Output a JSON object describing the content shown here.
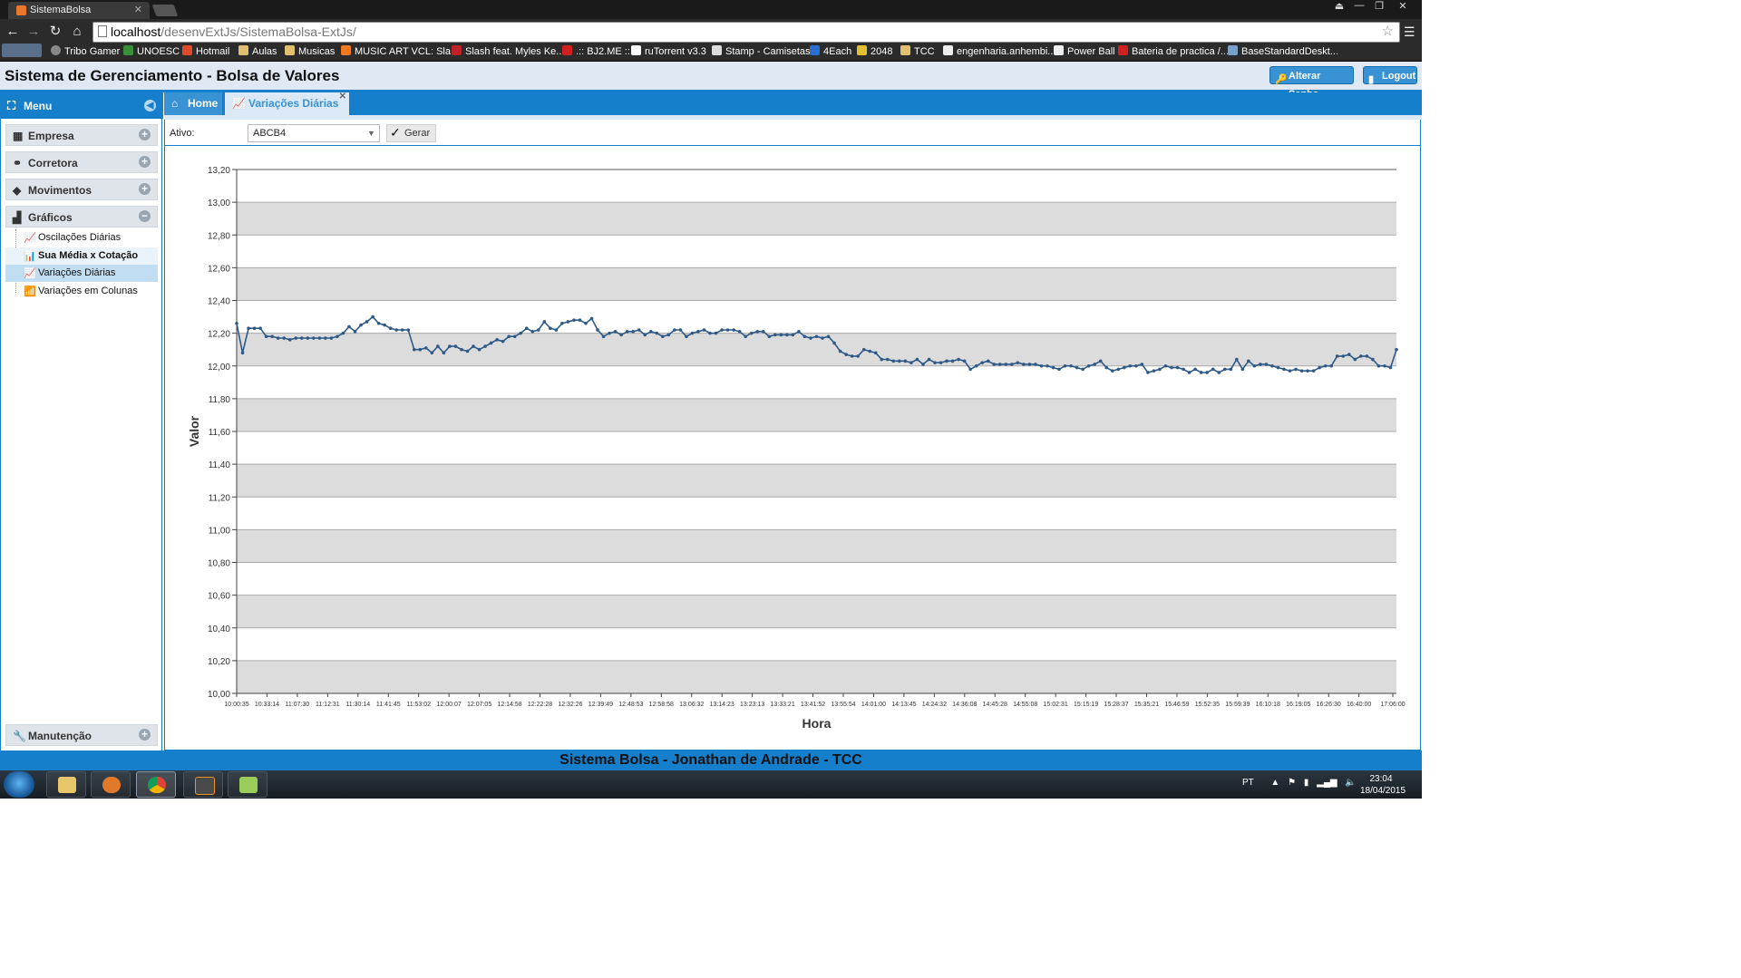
{
  "browser": {
    "tab_title": "SistemaBolsa",
    "url_host": "localhost",
    "url_path": "/desenvExtJs/SistemaBolsa-ExtJs/",
    "bookmarks": [
      "Tribo Gamer",
      "UNOESC",
      "Hotmail",
      "Aulas",
      "Musicas",
      "MUSIC ART VCL: Sla...",
      "Slash feat. Myles Ke...",
      ".:: BJ2.ME ::.",
      "ruTorrent v3.3",
      "Stamp - Camisetas",
      "4Each",
      "2048",
      "TCC",
      "engenharia.anhembi...",
      "Power Ball",
      "Bateria de practica /...",
      "BaseStandardDeskt..."
    ]
  },
  "header": {
    "title": "Sistema de Gerenciamento - Bolsa de Valores",
    "alterar_senha": "Alterar Senha",
    "logout": "Logout"
  },
  "menu": {
    "title": "Menu",
    "sections": [
      "Empresa",
      "Corretora",
      "Movimentos",
      "Gráficos"
    ],
    "graficos_items": [
      "Oscilações Diárias",
      "Sua Média x Cotação",
      "Variações Diárias",
      "Variações em Colunas"
    ],
    "manutencao": "Manutenção"
  },
  "tabs": {
    "home": "Home",
    "variacoes": "Variações Diárias"
  },
  "filter": {
    "ativo_label": "Ativo:",
    "ativo_value": "ABCB4",
    "gerar": "Gerar"
  },
  "chart_data": {
    "type": "line",
    "xlabel": "Hora",
    "ylabel": "Valor",
    "ylim": [
      10.0,
      13.2
    ],
    "ytick_labels": [
      "10,00",
      "10,20",
      "10,40",
      "10,60",
      "10,80",
      "11,00",
      "11,20",
      "11,40",
      "11,60",
      "11,80",
      "12,00",
      "12,20",
      "12,40",
      "12,60",
      "12,80",
      "13,00",
      "13,20"
    ],
    "xtick_labels": [
      "10:00:35",
      "10:33:14",
      "11:07:30",
      "11:12:31",
      "11:30:14",
      "11:41:45",
      "11:53:02",
      "12:00:07",
      "12:07:05",
      "12:14:58",
      "12:22:28",
      "12:32:26",
      "12:39:49",
      "12:48:53",
      "12:58:58",
      "13:06:32",
      "13:14:23",
      "13:23:13",
      "13:33:21",
      "13:41:52",
      "13:55:54",
      "14:01:00",
      "14:13:45",
      "14:24:32",
      "14:36:08",
      "14:45:28",
      "14:55:08",
      "15:02:31",
      "15:15:19",
      "15:28:37",
      "15:35:21",
      "15:46:59",
      "15:52:35",
      "15:59:39",
      "16:10:18",
      "16:19:05",
      "16:26:30",
      "16:40:00",
      "17:06:00"
    ],
    "grid": true,
    "series": [
      {
        "values": [
          12.26,
          12.08,
          12.23,
          12.23,
          12.23,
          12.18,
          12.18,
          12.17,
          12.17,
          12.16,
          12.17,
          12.17,
          12.17,
          12.17,
          12.17,
          12.17,
          12.17,
          12.18,
          12.2,
          12.24,
          12.21,
          12.25,
          12.27,
          12.3,
          12.26,
          12.25,
          12.23,
          12.22,
          12.22,
          12.22,
          12.1,
          12.1,
          12.11,
          12.08,
          12.12,
          12.08,
          12.12,
          12.12,
          12.1,
          12.09,
          12.12,
          12.1,
          12.12,
          12.14,
          12.16,
          12.15,
          12.18,
          12.18,
          12.2,
          12.23,
          12.21,
          12.22,
          12.27,
          12.23,
          12.22,
          12.26,
          12.27,
          12.28,
          12.28,
          12.26,
          12.29,
          12.22,
          12.18,
          12.2,
          12.21,
          12.19,
          12.21,
          12.21,
          12.22,
          12.19,
          12.21,
          12.2,
          12.18,
          12.19,
          12.22,
          12.22,
          12.18,
          12.2,
          12.21,
          12.22,
          12.2,
          12.2,
          12.22,
          12.22,
          12.22,
          12.21,
          12.18,
          12.2,
          12.21,
          12.21,
          12.18,
          12.19,
          12.19,
          12.19,
          12.19,
          12.21,
          12.18,
          12.17,
          12.18,
          12.17,
          12.18,
          12.14,
          12.09,
          12.07,
          12.06,
          12.06,
          12.1,
          12.09,
          12.08,
          12.04,
          12.04,
          12.03,
          12.03,
          12.03,
          12.02,
          12.04,
          12.01,
          12.04,
          12.02,
          12.02,
          12.03,
          12.03,
          12.04,
          12.03,
          11.98,
          12.0,
          12.02,
          12.03,
          12.01,
          12.01,
          12.01,
          12.01,
          12.02,
          12.01,
          12.01,
          12.01,
          12.0,
          12.0,
          11.99,
          11.98,
          12.0,
          12.0,
          11.99,
          11.98,
          12.0,
          12.01,
          12.03,
          11.99,
          11.97,
          11.98,
          11.99,
          12.0,
          12.0,
          12.01,
          11.96,
          11.97,
          11.98,
          12.0,
          11.99,
          11.99,
          11.98,
          11.96,
          11.98,
          11.96,
          11.96,
          11.98,
          11.96,
          11.98,
          11.98,
          12.04,
          11.98,
          12.03,
          12.0,
          12.01,
          12.01,
          12.0,
          11.99,
          11.98,
          11.97,
          11.98,
          11.97,
          11.97,
          11.97,
          11.99,
          12.0,
          12.0,
          12.06,
          12.06,
          12.07,
          12.04,
          12.06,
          12.06,
          12.04,
          12.0,
          12.0,
          11.99,
          12.1
        ]
      }
    ]
  },
  "footer": "Sistema Bolsa - Jonathan de Andrade - TCC",
  "taskbar": {
    "lang": "PT",
    "time": "23:04",
    "date": "18/04/2015"
  },
  "colors": {
    "accent": "#157fcc",
    "line": "#2f5a87",
    "band": "#dcdcdc"
  }
}
